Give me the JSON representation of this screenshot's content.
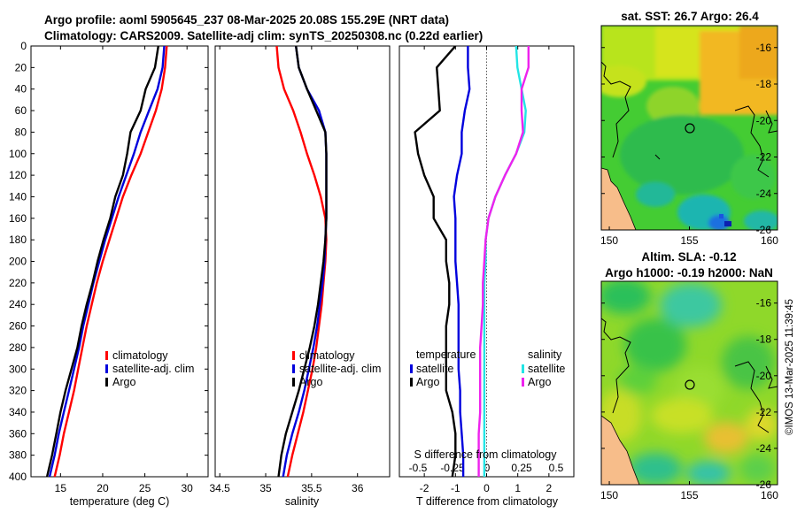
{
  "header": {
    "line1": "Argo profile: aoml 5905645_237 08-Mar-2025 20.08S 155.29E (NRT data)",
    "line2": "Climatology: CARS2009. Satellite-adj clim: synTS_20250308.nc (0.22d earlier)"
  },
  "colors": {
    "climatology": "#ff0000",
    "satellite_adj": "#0000dd",
    "argo": "#000000",
    "salinity_sat": "#22e5e5",
    "salinity_argo": "#ee22ee",
    "land": "#f7bd8a"
  },
  "chart_data": [
    {
      "type": "line",
      "name": "temperature-profile",
      "xlabel": "temperature (deg C)",
      "ylabel": "",
      "xlim": [
        11.5,
        32.5
      ],
      "ylim": [
        400,
        0
      ],
      "xticks": [
        "15",
        "20",
        "25",
        "30"
      ],
      "yticks": [
        "0",
        "20",
        "40",
        "60",
        "80",
        "100",
        "120",
        "140",
        "160",
        "180",
        "200",
        "220",
        "240",
        "260",
        "280",
        "300",
        "320",
        "340",
        "360",
        "380",
        "400"
      ],
      "legend": {
        "position": "right-middle",
        "entries": [
          "climatology",
          "satellite-adj. clim",
          "Argo"
        ]
      },
      "depth": [
        0,
        20,
        40,
        60,
        80,
        100,
        120,
        140,
        160,
        180,
        200,
        220,
        240,
        260,
        280,
        300,
        320,
        340,
        360,
        380,
        400
      ],
      "series": [
        {
          "name": "climatology",
          "values": [
            27.6,
            27.4,
            27.0,
            26.3,
            25.4,
            24.5,
            23.4,
            22.4,
            21.6,
            20.8,
            20.0,
            19.3,
            18.7,
            18.1,
            17.6,
            17.1,
            16.6,
            16.0,
            15.4,
            14.9,
            14.3
          ]
        },
        {
          "name": "satellite-adj. clim",
          "values": [
            27.3,
            27.1,
            26.5,
            25.5,
            24.5,
            23.7,
            22.8,
            21.9,
            21.1,
            20.3,
            19.6,
            18.9,
            18.3,
            17.7,
            17.2,
            16.6,
            16.0,
            15.4,
            14.8,
            14.3,
            13.7
          ]
        },
        {
          "name": "Argo",
          "values": [
            26.6,
            26.2,
            25.1,
            24.5,
            23.3,
            22.9,
            22.4,
            21.5,
            20.9,
            20.1,
            19.4,
            18.8,
            18.1,
            17.5,
            17.0,
            16.3,
            15.6,
            15.0,
            14.5,
            14.0,
            13.4
          ]
        }
      ]
    },
    {
      "type": "line",
      "name": "salinity-profile",
      "xlabel": "salinity",
      "ylabel": "",
      "xlim": [
        34.45,
        36.35
      ],
      "ylim": [
        400,
        0
      ],
      "xticks": [
        "34.5",
        "35",
        "35.5",
        "36"
      ],
      "legend": {
        "position": "right-middle",
        "entries": [
          "climatology",
          "satellite-adj. clim",
          "Argo"
        ]
      },
      "depth": [
        0,
        20,
        40,
        60,
        80,
        100,
        120,
        140,
        160,
        180,
        200,
        220,
        240,
        260,
        280,
        300,
        320,
        340,
        360,
        380,
        400
      ],
      "series": [
        {
          "name": "climatology",
          "values": [
            35.12,
            35.14,
            35.2,
            35.3,
            35.38,
            35.45,
            35.53,
            35.6,
            35.65,
            35.66,
            35.65,
            35.63,
            35.61,
            35.58,
            35.55,
            35.51,
            35.46,
            35.41,
            35.35,
            35.29,
            35.24
          ]
        },
        {
          "name": "satellite-adj. clim",
          "values": [
            35.33,
            35.36,
            35.45,
            35.58,
            35.65,
            35.66,
            35.66,
            35.66,
            35.66,
            35.65,
            35.64,
            35.62,
            35.59,
            35.56,
            35.52,
            35.47,
            35.42,
            35.36,
            35.29,
            35.23,
            35.19
          ]
        },
        {
          "name": "Argo",
          "values": [
            35.33,
            35.36,
            35.45,
            35.55,
            35.65,
            35.66,
            35.66,
            35.66,
            35.66,
            35.65,
            35.63,
            35.6,
            35.57,
            35.53,
            35.48,
            35.42,
            35.36,
            35.29,
            35.22,
            35.17,
            35.14
          ]
        }
      ]
    },
    {
      "type": "line",
      "name": "difference-profile",
      "xlabel": "T difference from climatology",
      "xlabel_top": "S difference from climatology",
      "ylabel": "",
      "xlim": [
        -2.8,
        2.8
      ],
      "ylim": [
        400,
        0
      ],
      "xticks": [
        "-2",
        "-1",
        "0",
        "1",
        "2"
      ],
      "xticks_s": [
        "-0.5",
        "-0.25",
        "0",
        "0.25",
        "0.5"
      ],
      "legend_temperature": {
        "title": "temperature",
        "entries": [
          "satellite",
          "Argo"
        ]
      },
      "legend_salinity": {
        "title": "salinity",
        "entries": [
          "satellite",
          "Argo"
        ]
      },
      "depth": [
        0,
        20,
        40,
        60,
        80,
        100,
        120,
        140,
        160,
        180,
        200,
        220,
        240,
        260,
        280,
        300,
        320,
        340,
        360,
        380,
        400
      ],
      "series": [
        {
          "name": "temperature satellite",
          "values": [
            -0.6,
            -0.6,
            -0.55,
            -0.7,
            -0.8,
            -0.8,
            -0.95,
            -1.05,
            -1.0,
            -1.0,
            -1.0,
            -0.95,
            -0.9,
            -0.9,
            -0.9,
            -0.9,
            -0.85,
            -0.85,
            -0.8,
            -0.75,
            -0.75
          ]
        },
        {
          "name": "temperature Argo",
          "values": [
            -1.0,
            -1.6,
            -1.55,
            -1.5,
            -2.3,
            -2.2,
            -2.0,
            -1.7,
            -1.7,
            -1.3,
            -1.3,
            -1.2,
            -1.2,
            -1.3,
            -1.3,
            -1.3,
            -1.3,
            -1.1,
            -1.0,
            -1.0,
            -1.1
          ]
        },
        {
          "name": "salinity satellite",
          "values": [
            0.21,
            0.22,
            0.25,
            0.28,
            0.27,
            0.21,
            0.13,
            0.06,
            0.01,
            -0.01,
            -0.01,
            -0.02,
            -0.02,
            -0.02,
            -0.02,
            -0.02,
            -0.02,
            -0.02,
            -0.02,
            -0.02,
            -0.02
          ]
        },
        {
          "name": "salinity Argo",
          "values": [
            0.3,
            0.3,
            0.25,
            0.25,
            0.26,
            0.21,
            0.13,
            0.06,
            0.01,
            -0.01,
            -0.02,
            -0.03,
            -0.03,
            -0.04,
            -0.05,
            -0.05,
            -0.05,
            -0.05,
            -0.06,
            -0.06,
            -0.06
          ]
        }
      ]
    },
    {
      "type": "heatmap",
      "name": "sst-map",
      "title": "sat. SST: 26.7 Argo: 26.4",
      "xticks": [
        "150",
        "155",
        "160"
      ],
      "yticks": [
        "-16",
        "-18",
        "-20",
        "-22",
        "-24",
        "-26"
      ],
      "xlim": [
        149.5,
        160.5
      ],
      "ylim": [
        -26,
        -14.8
      ],
      "marker": {
        "lon": 155.29,
        "lat": -20.08
      }
    },
    {
      "type": "heatmap",
      "name": "sla-map",
      "title": "Altim. SLA: -0.12",
      "subtitle": "Argo h1000: -0.19 h2000: NaN",
      "xticks": [
        "150",
        "155",
        "160"
      ],
      "yticks": [
        "-16",
        "-18",
        "-20",
        "-22",
        "-24",
        "-26"
      ],
      "xlim": [
        149.5,
        160.5
      ],
      "ylim": [
        -26,
        -14.8
      ],
      "marker": {
        "lon": 155.29,
        "lat": -20.08
      }
    }
  ],
  "stamp": "©IMOS 13-Mar-2025 11:39:45"
}
